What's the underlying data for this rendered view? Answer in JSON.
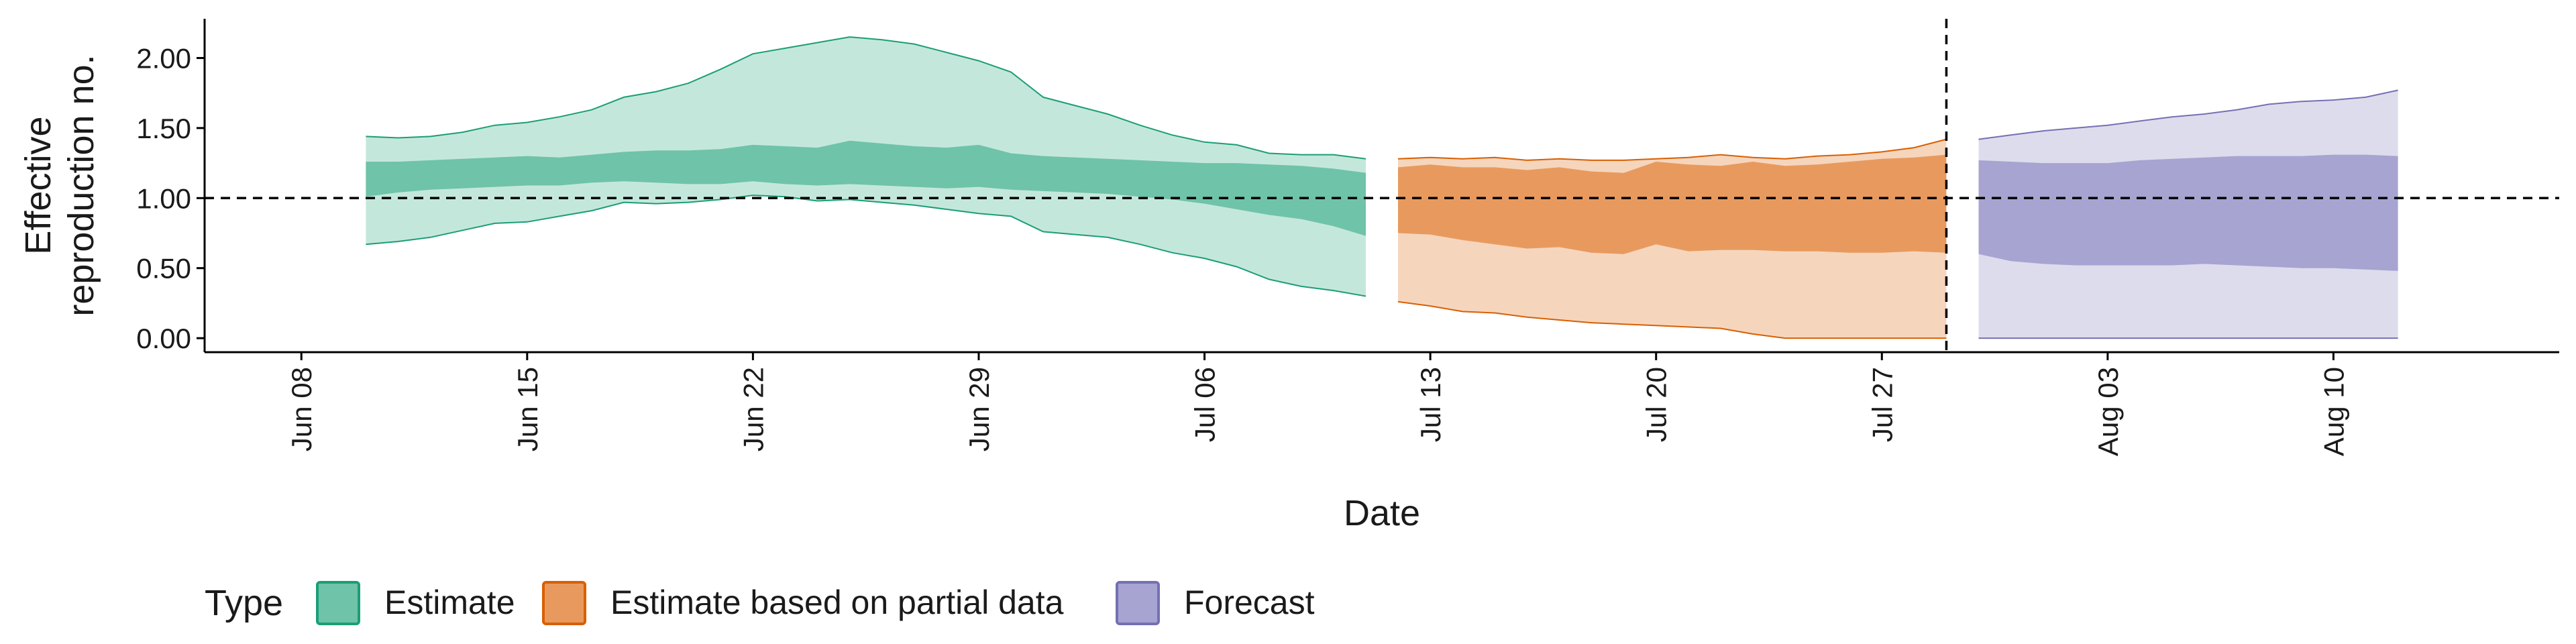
{
  "chart_data": {
    "type": "area",
    "xlabel": "Date",
    "ylabel_lines": [
      "Effective",
      "reproduction no."
    ],
    "ylim": [
      -0.1,
      2.28
    ],
    "yticks": [
      {
        "value": 0.0,
        "label": "0.00"
      },
      {
        "value": 0.5,
        "label": "0.50"
      },
      {
        "value": 1.0,
        "label": "1.00"
      },
      {
        "value": 1.5,
        "label": "1.50"
      },
      {
        "value": 2.0,
        "label": "2.00"
      }
    ],
    "xlim": [
      "2020-06-05",
      "2020-08-17"
    ],
    "xticks": [
      {
        "date": "2020-06-08",
        "label": "Jun 08"
      },
      {
        "date": "2020-06-15",
        "label": "Jun 15"
      },
      {
        "date": "2020-06-22",
        "label": "Jun 22"
      },
      {
        "date": "2020-06-29",
        "label": "Jun 29"
      },
      {
        "date": "2020-07-06",
        "label": "Jul 06"
      },
      {
        "date": "2020-07-13",
        "label": "Jul 13"
      },
      {
        "date": "2020-07-20",
        "label": "Jul 20"
      },
      {
        "date": "2020-07-27",
        "label": "Jul 27"
      },
      {
        "date": "2020-08-03",
        "label": "Aug 03"
      },
      {
        "date": "2020-08-10",
        "label": "Aug 10"
      }
    ],
    "reference_line_y": 1.0,
    "vertical_line_date": "2020-07-29",
    "legend": {
      "title": "Type",
      "position": "bottom-left"
    },
    "series": [
      {
        "name": "Estimate",
        "fill_inner": "#6fc3a8",
        "fill_outer": "#c4e7dc",
        "stroke": "#1b9e77",
        "x": [
          "2020-06-10",
          "2020-06-11",
          "2020-06-12",
          "2020-06-13",
          "2020-06-14",
          "2020-06-15",
          "2020-06-16",
          "2020-06-17",
          "2020-06-18",
          "2020-06-19",
          "2020-06-20",
          "2020-06-21",
          "2020-06-22",
          "2020-06-23",
          "2020-06-24",
          "2020-06-25",
          "2020-06-26",
          "2020-06-27",
          "2020-06-28",
          "2020-06-29",
          "2020-06-30",
          "2020-07-01",
          "2020-07-02",
          "2020-07-03",
          "2020-07-04",
          "2020-07-05",
          "2020-07-06",
          "2020-07-07",
          "2020-07-08",
          "2020-07-09",
          "2020-07-10",
          "2020-07-11"
        ],
        "outer_low": [
          0.67,
          0.69,
          0.72,
          0.77,
          0.82,
          0.83,
          0.87,
          0.91,
          0.97,
          0.96,
          0.97,
          0.99,
          1.02,
          1.01,
          0.98,
          0.99,
          0.97,
          0.95,
          0.92,
          0.89,
          0.87,
          0.76,
          0.74,
          0.72,
          0.67,
          0.61,
          0.57,
          0.51,
          0.42,
          0.37,
          0.34,
          0.3
        ],
        "outer_high": [
          1.44,
          1.43,
          1.44,
          1.47,
          1.52,
          1.54,
          1.58,
          1.63,
          1.72,
          1.76,
          1.82,
          1.92,
          2.03,
          2.07,
          2.11,
          2.15,
          2.13,
          2.1,
          2.04,
          1.98,
          1.9,
          1.72,
          1.66,
          1.6,
          1.52,
          1.45,
          1.4,
          1.38,
          1.32,
          1.31,
          1.31,
          1.28
        ],
        "inner_low": [
          1.01,
          1.04,
          1.06,
          1.07,
          1.08,
          1.09,
          1.09,
          1.11,
          1.12,
          1.11,
          1.1,
          1.1,
          1.12,
          1.1,
          1.09,
          1.1,
          1.09,
          1.08,
          1.07,
          1.08,
          1.06,
          1.05,
          1.04,
          1.03,
          1.01,
          0.99,
          0.96,
          0.92,
          0.88,
          0.85,
          0.8,
          0.73
        ],
        "inner_high": [
          1.26,
          1.26,
          1.27,
          1.28,
          1.29,
          1.3,
          1.29,
          1.31,
          1.33,
          1.34,
          1.34,
          1.35,
          1.38,
          1.37,
          1.36,
          1.41,
          1.39,
          1.37,
          1.36,
          1.38,
          1.32,
          1.3,
          1.29,
          1.28,
          1.27,
          1.26,
          1.25,
          1.25,
          1.24,
          1.23,
          1.21,
          1.18
        ]
      },
      {
        "name": "Estimate based on partial data",
        "fill_inner": "#e89a5e",
        "fill_outer": "#f6d5bd",
        "stroke": "#d95f02",
        "x": [
          "2020-07-12",
          "2020-07-13",
          "2020-07-14",
          "2020-07-15",
          "2020-07-16",
          "2020-07-17",
          "2020-07-18",
          "2020-07-19",
          "2020-07-20",
          "2020-07-21",
          "2020-07-22",
          "2020-07-23",
          "2020-07-24",
          "2020-07-25",
          "2020-07-26",
          "2020-07-27",
          "2020-07-28",
          "2020-07-29"
        ],
        "outer_low": [
          0.26,
          0.23,
          0.19,
          0.18,
          0.15,
          0.13,
          0.11,
          0.1,
          0.09,
          0.08,
          0.07,
          0.03,
          0.0,
          0.0,
          0.0,
          0.0,
          0.0,
          0.0
        ],
        "outer_high": [
          1.28,
          1.29,
          1.28,
          1.29,
          1.27,
          1.28,
          1.27,
          1.27,
          1.28,
          1.29,
          1.31,
          1.29,
          1.28,
          1.3,
          1.31,
          1.33,
          1.36,
          1.42
        ],
        "inner_low": [
          0.75,
          0.74,
          0.7,
          0.67,
          0.64,
          0.65,
          0.61,
          0.6,
          0.67,
          0.62,
          0.63,
          0.63,
          0.62,
          0.62,
          0.61,
          0.61,
          0.62,
          0.61
        ],
        "inner_high": [
          1.22,
          1.24,
          1.22,
          1.22,
          1.2,
          1.22,
          1.19,
          1.18,
          1.26,
          1.24,
          1.23,
          1.26,
          1.23,
          1.24,
          1.26,
          1.28,
          1.29,
          1.31
        ]
      },
      {
        "name": "Forecast",
        "fill_inner": "#a7a4d1",
        "fill_outer": "#dddcec",
        "stroke": "#7570b3",
        "x": [
          "2020-07-30",
          "2020-07-31",
          "2020-08-01",
          "2020-08-02",
          "2020-08-03",
          "2020-08-04",
          "2020-08-05",
          "2020-08-06",
          "2020-08-07",
          "2020-08-08",
          "2020-08-09",
          "2020-08-10",
          "2020-08-11",
          "2020-08-12"
        ],
        "outer_low": [
          0.0,
          0.0,
          0.0,
          0.0,
          0.0,
          0.0,
          0.0,
          0.0,
          0.0,
          0.0,
          0.0,
          0.0,
          0.0,
          0.0
        ],
        "outer_high": [
          1.42,
          1.45,
          1.48,
          1.5,
          1.52,
          1.55,
          1.58,
          1.6,
          1.63,
          1.67,
          1.69,
          1.7,
          1.72,
          1.77
        ],
        "inner_low": [
          0.6,
          0.55,
          0.53,
          0.52,
          0.52,
          0.52,
          0.52,
          0.53,
          0.52,
          0.51,
          0.5,
          0.5,
          0.49,
          0.48
        ],
        "inner_high": [
          1.27,
          1.26,
          1.25,
          1.25,
          1.25,
          1.27,
          1.28,
          1.29,
          1.3,
          1.3,
          1.3,
          1.31,
          1.31,
          1.3
        ]
      }
    ]
  }
}
